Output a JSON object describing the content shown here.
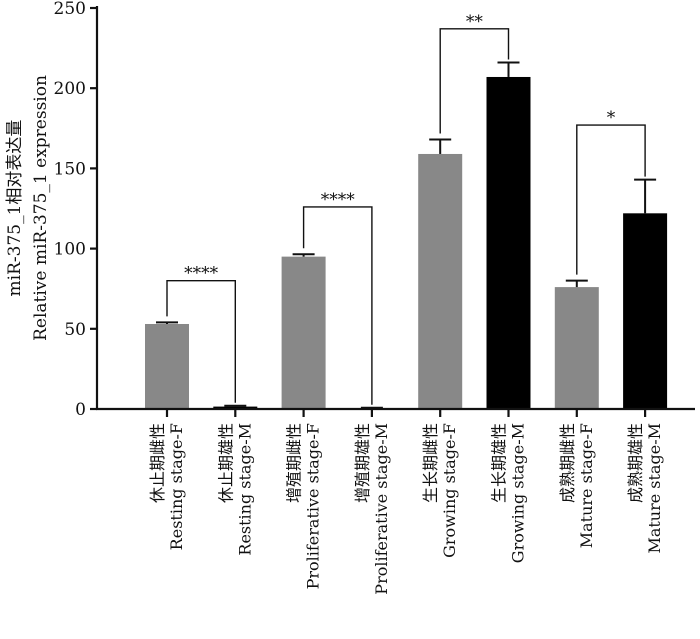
{
  "chart_data": {
    "type": "bar",
    "title": "",
    "ylabel_lines": [
      "miR-375_1相对表达量",
      "Relative miR-375_1 expression"
    ],
    "xlabel": "",
    "ylim": [
      0,
      250
    ],
    "yticks": [
      0,
      50,
      100,
      150,
      200,
      250
    ],
    "grid": false,
    "categories": [
      {
        "cn": "休止期雌性",
        "en": "Resting stage-F"
      },
      {
        "cn": "休止期雄性",
        "en": "Resting stage-M"
      },
      {
        "cn": "增殖期雌性",
        "en": "Proliferative stage-F"
      },
      {
        "cn": "增殖期雄性",
        "en": "Proliferative stage-M"
      },
      {
        "cn": "生长期雌性",
        "en": "Growing stage-F"
      },
      {
        "cn": "生长期雄性",
        "en": "Growing stage-M"
      },
      {
        "cn": "成熟期雌性",
        "en": "Mature stage-F"
      },
      {
        "cn": "成熟期雄性",
        "en": "Mature stage-M"
      }
    ],
    "values": [
      53,
      1.5,
      95,
      0.5,
      159,
      207,
      76,
      122
    ],
    "errors": [
      1,
      0.5,
      1.5,
      0.3,
      9,
      9,
      4,
      21
    ],
    "bar_colors": [
      "#888888",
      "#000000",
      "#888888",
      "#000000",
      "#888888",
      "#000000",
      "#888888",
      "#000000"
    ],
    "significance": [
      {
        "from": 0,
        "to": 1,
        "label": "****",
        "y": 80
      },
      {
        "from": 2,
        "to": 3,
        "label": "****",
        "y": 126
      },
      {
        "from": 4,
        "to": 5,
        "label": "**",
        "y": 237
      },
      {
        "from": 6,
        "to": 7,
        "label": "*",
        "y": 177
      }
    ]
  }
}
